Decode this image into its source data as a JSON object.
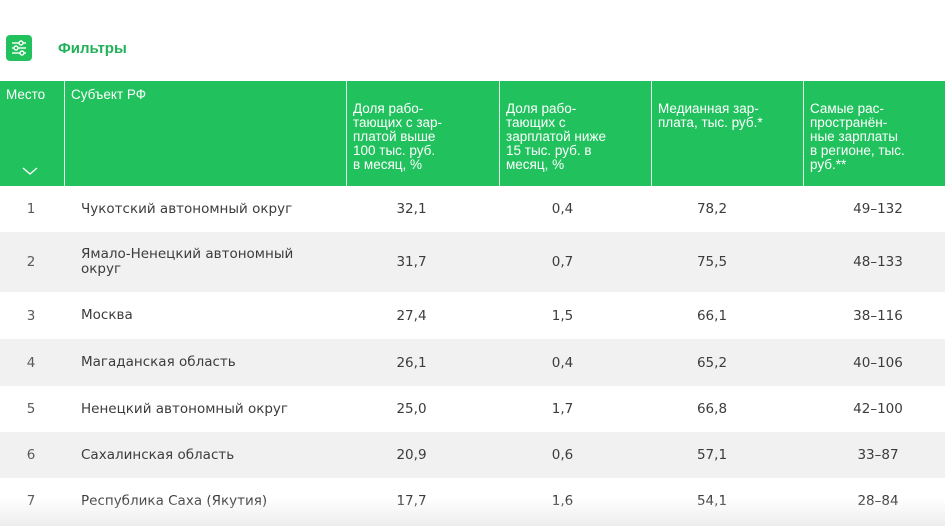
{
  "filters": {
    "label": "Фильтры",
    "icon": "sliders-icon",
    "accent": "#21c25e"
  },
  "table": {
    "header_color": "#21c25e",
    "stripe_color": "#f1f1f1",
    "columns": [
      {
        "key": "rank",
        "label": "Место"
      },
      {
        "key": "subject",
        "label": "Субъект РФ"
      },
      {
        "key": "high",
        "label": "Доля рабо-\nтающих с зар-\nплатой выше\n100 тыс. руб.\nв месяц, %"
      },
      {
        "key": "low",
        "label": "Доля рабо-\nтающих с\nзарплатой ниже\n15 тыс. руб. в\nмесяц, %"
      },
      {
        "key": "median",
        "label": "Медианная зар-\nплата, тыс. руб.*"
      },
      {
        "key": "range",
        "label": "Самые рас-\nпространён-\nные зарплаты\nв регионе, тыс.\nруб.**"
      }
    ],
    "sort_icon": "chevron-down-icon",
    "rows": [
      {
        "rank": "1",
        "subject": "Чукотский автономный округ",
        "high": "32,1",
        "low": "0,4",
        "median": "78,2",
        "range": "49–132"
      },
      {
        "rank": "2",
        "subject": "Ямало-Ненецкий автономный округ",
        "high": "31,7",
        "low": "0,7",
        "median": "75,5",
        "range": "48–133"
      },
      {
        "rank": "3",
        "subject": "Москва",
        "high": "27,4",
        "low": "1,5",
        "median": "66,1",
        "range": "38–116"
      },
      {
        "rank": "4",
        "subject": "Магаданская область",
        "high": "26,1",
        "low": "0,4",
        "median": "65,2",
        "range": "40–106"
      },
      {
        "rank": "5",
        "subject": "Ненецкий автономный округ",
        "high": "25,0",
        "low": "1,7",
        "median": "66,8",
        "range": "42–100"
      },
      {
        "rank": "6",
        "subject": "Сахалинская область",
        "high": "20,9",
        "low": "0,6",
        "median": "57,1",
        "range": "33–87"
      },
      {
        "rank": "7",
        "subject": "Республика Саха (Якутия)",
        "high": "17,7",
        "low": "1,6",
        "median": "54,1",
        "range": "28–84"
      }
    ]
  }
}
